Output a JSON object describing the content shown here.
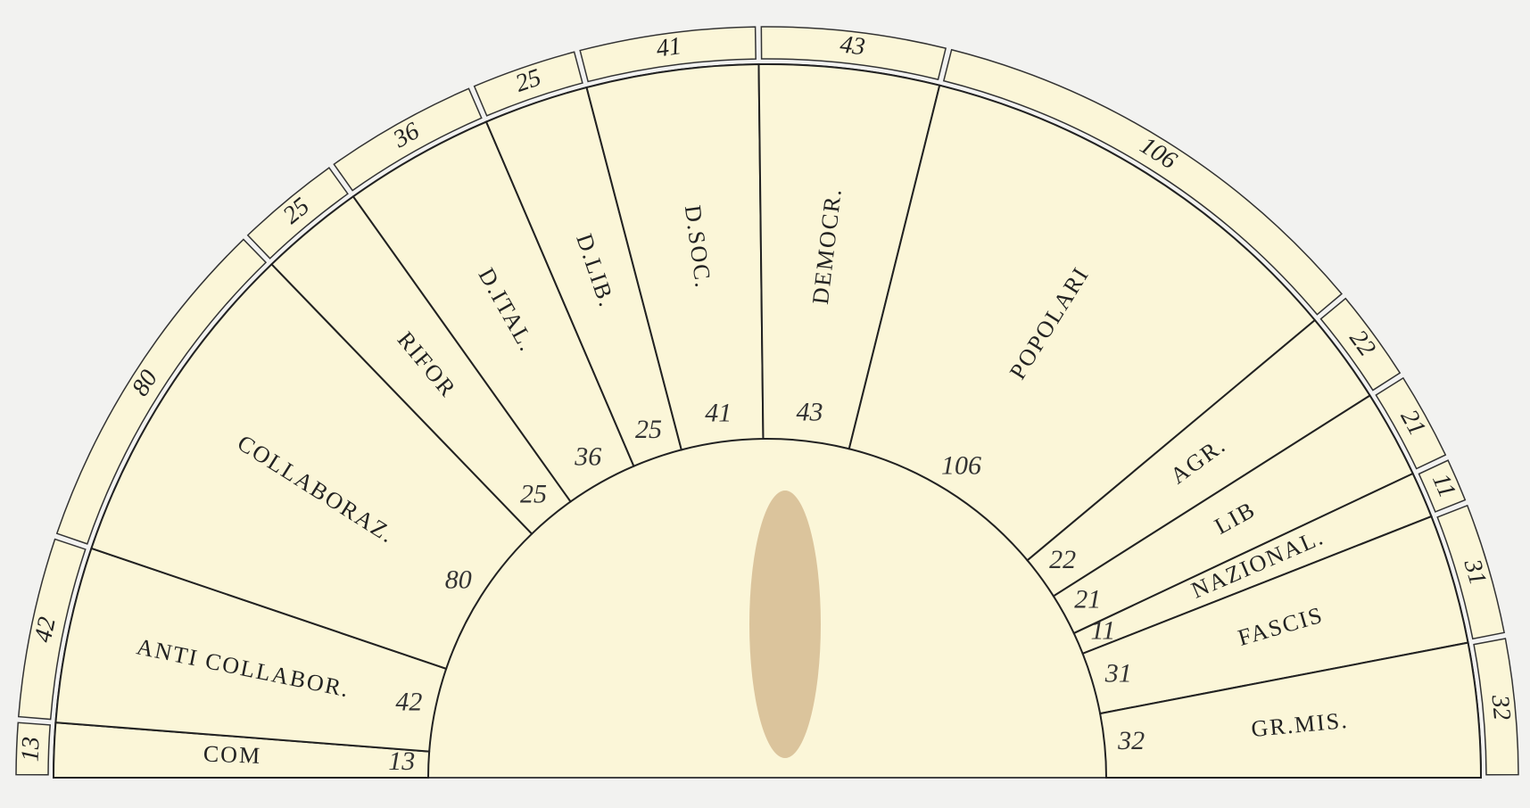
{
  "chart_data": {
    "type": "hemicycle",
    "categories": [
      "COM",
      "ANTI COLLABOR.",
      "COLLABORAZ.",
      "RIFOR",
      "D.ITAL.",
      "D.LIB.",
      "D.SOC.",
      "DEMOCR.",
      "POPOLARI",
      "AGR.",
      "LIB",
      "NAZIONAL.",
      "FASCIS",
      "GR.MIS."
    ],
    "values": [
      13,
      42,
      80,
      25,
      36,
      25,
      41,
      43,
      106,
      22,
      21,
      11,
      31,
      32
    ],
    "color": "#fbf6d8"
  }
}
